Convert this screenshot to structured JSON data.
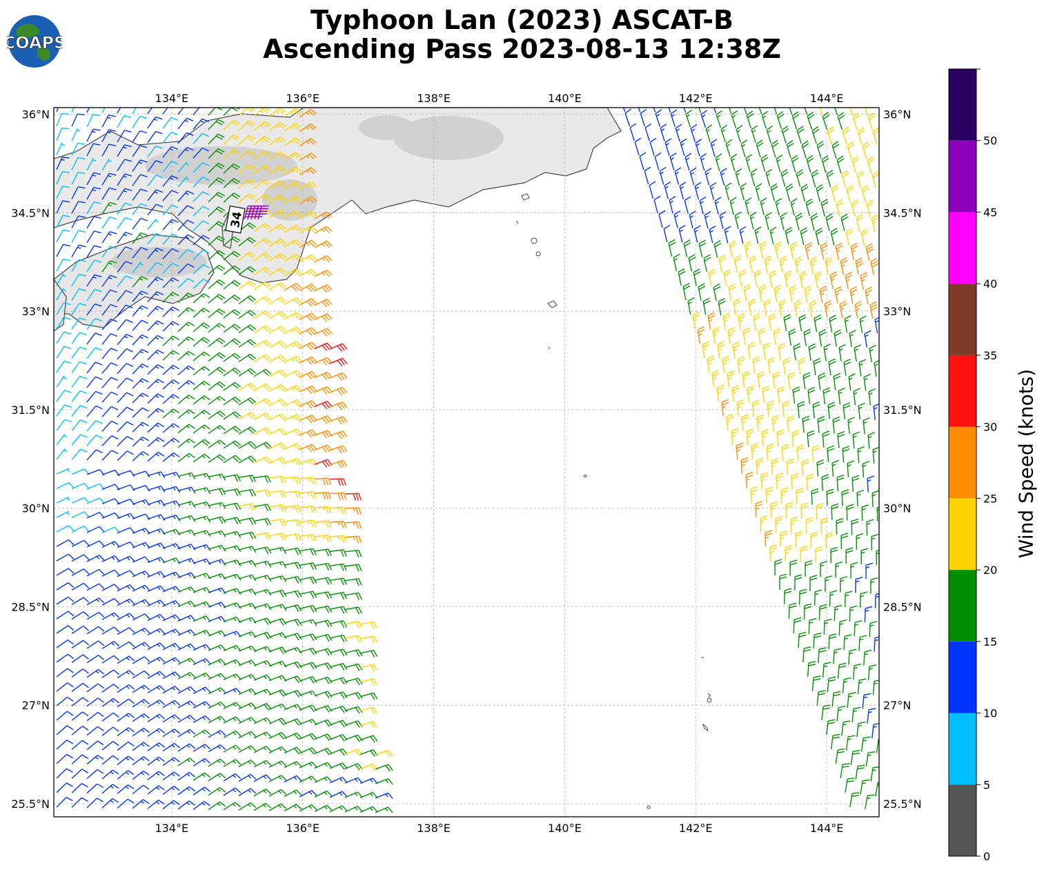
{
  "header": {
    "title_line1": "Typhoon Lan (2023) ASCAT-B",
    "title_line2": "Ascending Pass 2023-08-13 12:38Z",
    "logo_text": "COAPS"
  },
  "map": {
    "lon_ticks": [
      "134°E",
      "136°E",
      "138°E",
      "140°E",
      "142°E",
      "144°E"
    ],
    "lat_ticks": [
      "36°N",
      "34.5°N",
      "33°N",
      "31.5°N",
      "30°N",
      "28.5°N",
      "27°N",
      "25.5°N"
    ],
    "lon_range": [
      132.2,
      144.8
    ],
    "lat_range": [
      25.3,
      36.1
    ],
    "storm_marker": {
      "label": "34",
      "lon": 135.1,
      "lat": 34.45
    },
    "colors": {
      "coast": "#444444",
      "grid": "#b0b0b0"
    }
  },
  "colorbar": {
    "label": "Wind Speed (knots)",
    "ticks": [
      "0",
      "5",
      "10",
      "15",
      "20",
      "25",
      "30",
      "35",
      "40",
      "45",
      "50"
    ],
    "bins": [
      {
        "min": 0,
        "max": 5,
        "color": "#555555"
      },
      {
        "min": 5,
        "max": 10,
        "color": "#00bfff"
      },
      {
        "min": 10,
        "max": 15,
        "color": "#0033ff"
      },
      {
        "min": 15,
        "max": 20,
        "color": "#008f00"
      },
      {
        "min": 20,
        "max": 25,
        "color": "#ffd300"
      },
      {
        "min": 25,
        "max": 30,
        "color": "#ff8c00"
      },
      {
        "min": 30,
        "max": 35,
        "color": "#ff1010"
      },
      {
        "min": 35,
        "max": 40,
        "color": "#803a2a"
      },
      {
        "min": 40,
        "max": 45,
        "color": "#ff00ff"
      },
      {
        "min": 45,
        "max": 50,
        "color": "#8b00b8"
      },
      {
        "min": 50,
        "max": 55,
        "color": "#2a0060"
      }
    ]
  }
}
